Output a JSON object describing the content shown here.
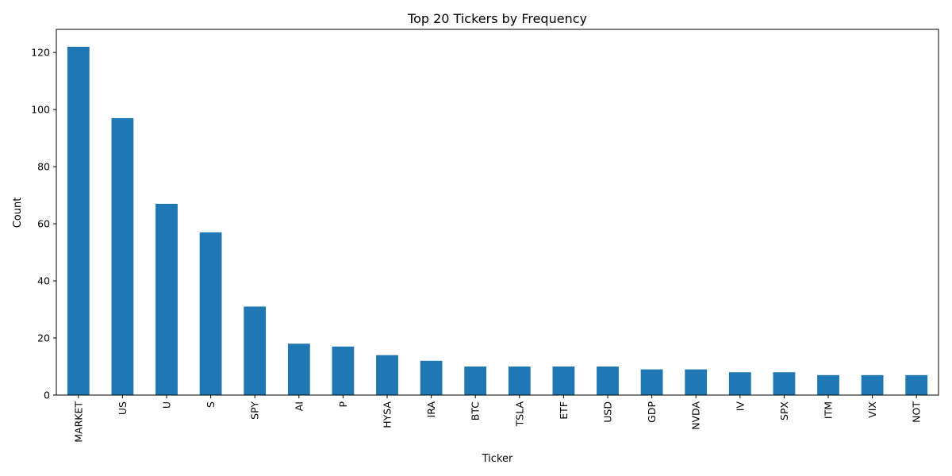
{
  "chart_data": {
    "type": "bar",
    "title": "Top 20 Tickers by Frequency",
    "xlabel": "Ticker",
    "ylabel": "Count",
    "categories": [
      "MARKET",
      "US",
      "U",
      "S",
      "SPY",
      "AI",
      "P",
      "HYSA",
      "IRA",
      "BTC",
      "TSLA",
      "ETF",
      "USD",
      "GDP",
      "NVDA",
      "IV",
      "SPX",
      "ITM",
      "VIX",
      "NOT"
    ],
    "values": [
      122,
      97,
      67,
      57,
      31,
      18,
      17,
      14,
      12,
      10,
      10,
      10,
      10,
      9,
      9,
      8,
      8,
      7,
      7,
      7
    ],
    "ylim": [
      0,
      128.1
    ],
    "yticks": [
      0,
      20,
      40,
      60,
      80,
      100,
      120
    ],
    "bar_color": "#1f77b4",
    "grid": false,
    "legend": "none"
  }
}
